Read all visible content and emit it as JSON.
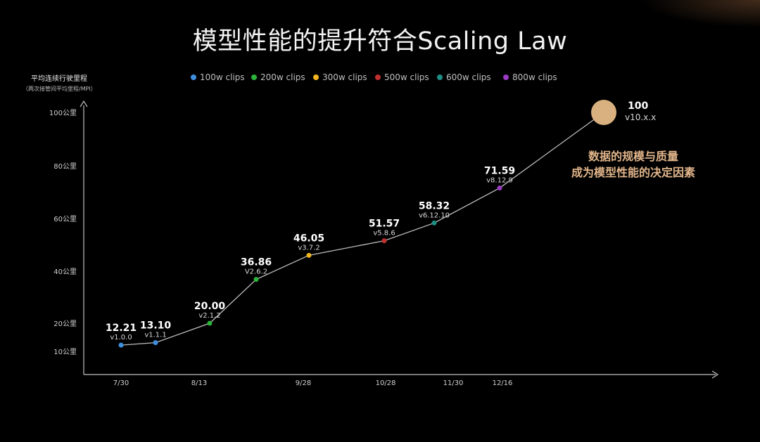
{
  "title": "模型性能的提升符合Scaling Law",
  "y_axis_title": "平均连续行驶里程",
  "y_axis_subtitle": "（两次接管间平均里程/MPI）",
  "annotation_lines": [
    "数据的规模与质量",
    "成为模型性能的决定因素"
  ],
  "legend": [
    {
      "label": "100w clips",
      "color": "#3f8fe0"
    },
    {
      "label": "200w clips",
      "color": "#2db33a"
    },
    {
      "label": "300w clips",
      "color": "#f2b520"
    },
    {
      "label": "500w clips",
      "color": "#c0302e"
    },
    {
      "label": "600w clips",
      "color": "#1f8f84"
    },
    {
      "label": "800w clips",
      "color": "#9a3bc4"
    }
  ],
  "chart_data": {
    "type": "line",
    "title": "模型性能的提升符合Scaling Law",
    "ylabel": "平均连续行驶里程",
    "y_ticks": [
      {
        "value": 10,
        "label": "10公里"
      },
      {
        "value": 20,
        "label": "20公里"
      },
      {
        "value": 40,
        "label": "40公里"
      },
      {
        "value": 60,
        "label": "60公里"
      },
      {
        "value": 80,
        "label": "80公里"
      },
      {
        "value": 100,
        "label": "100公里"
      }
    ],
    "x_ticks": [
      "7/30",
      "8/13",
      "9/28",
      "10/28",
      "11/30",
      "12/16"
    ],
    "grid": false,
    "legend_position": "top",
    "series_line_color": "#bdbdbd",
    "points": [
      {
        "value": 12.21,
        "version": "v1.0.0",
        "group": 0
      },
      {
        "value": 13.1,
        "version": "v1.1.1",
        "group": 0
      },
      {
        "value": 20.0,
        "version": "v2.1.2",
        "group": 1
      },
      {
        "value": 36.86,
        "version": "V2.6.2",
        "group": 1
      },
      {
        "value": 46.05,
        "version": "v3.7.2",
        "group": 2
      },
      {
        "value": 51.57,
        "version": "v5.8.6",
        "group": 3
      },
      {
        "value": 58.32,
        "version": "v6.12.10",
        "group": 4
      },
      {
        "value": 71.59,
        "version": "v8.12.9",
        "group": 5
      },
      {
        "value": 100,
        "version": "v10.x.x",
        "group": null,
        "projected": true,
        "marker_color": "#d9b07f"
      }
    ],
    "value_labels": [
      "12.21",
      "13.10",
      "20.00",
      "36.86",
      "46.05",
      "51.57",
      "58.32",
      "71.59",
      "100"
    ]
  }
}
